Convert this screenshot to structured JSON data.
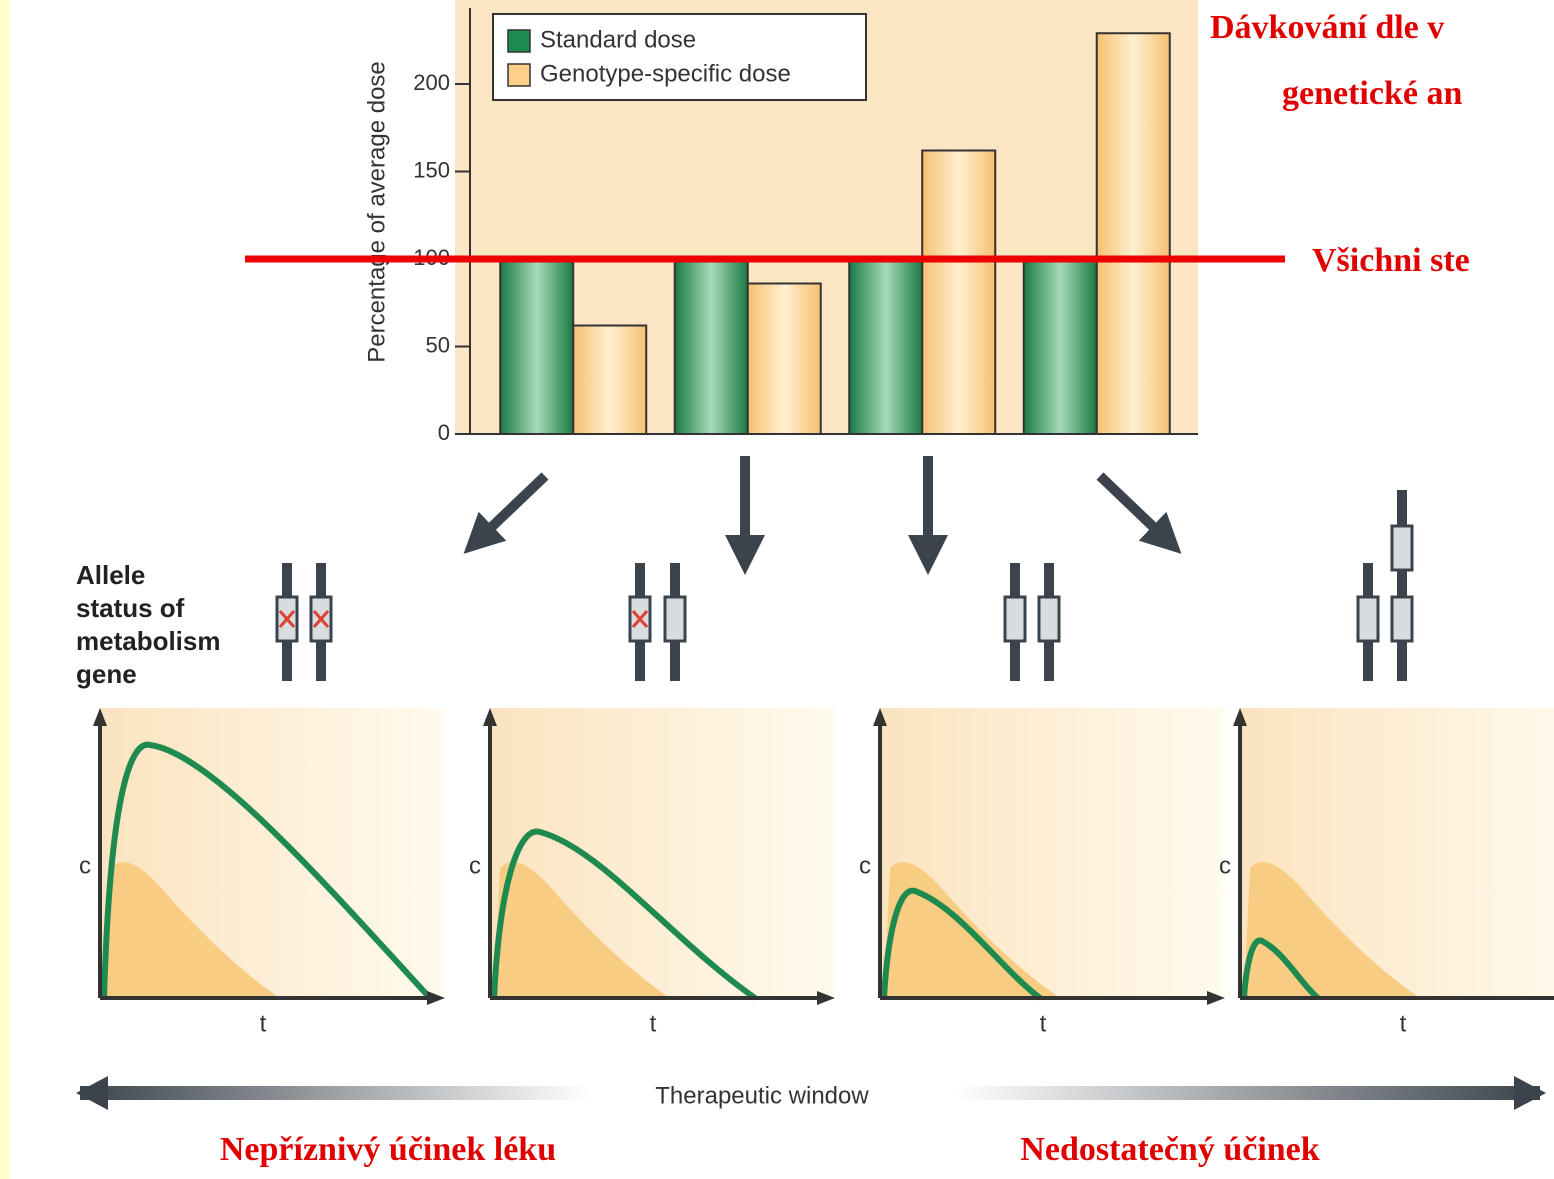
{
  "chart_data": {
    "type": "bar",
    "y_label": "Percentage of average dose",
    "categories": [
      null,
      null,
      null,
      null
    ],
    "series": [
      {
        "name": "Standard dose",
        "color": "#1f8a4f",
        "values": [
          100,
          100,
          100,
          100
        ]
      },
      {
        "name": "Genotype-specific dose",
        "color": "#fcd08a",
        "values": [
          62,
          86,
          162,
          229
        ]
      }
    ],
    "reference_line": 100,
    "ylim": [
      0,
      240
    ],
    "yticks": [
      0,
      50,
      100,
      150,
      200
    ]
  },
  "annotations": {
    "title_line1": "Dávkování dle v",
    "title_line2": "genetické an",
    "reference_note": "Všichni ste",
    "allele_label": "Allele status of metabolism gene",
    "conc_axis": "c",
    "time_axis": "t",
    "window": "Therapeutic window",
    "left_effect": "Nepříznivý účinek léku",
    "right_effect": "Nedostatečný účinek"
  }
}
